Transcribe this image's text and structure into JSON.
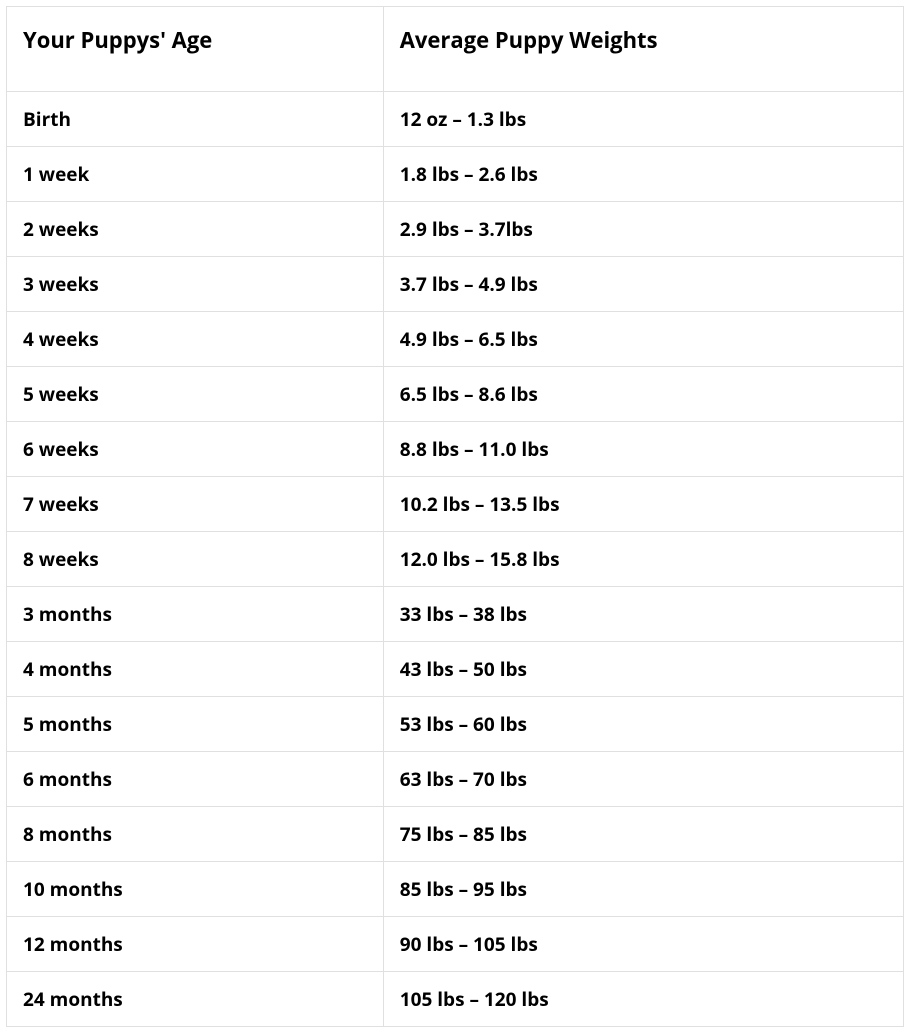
{
  "table": {
    "columns": [
      "Your Puppys' Age",
      "Average Puppy Weights"
    ],
    "rows": [
      [
        "Birth",
        "12 oz – 1.3 lbs"
      ],
      [
        "1 week",
        "1.8 lbs – 2.6 lbs"
      ],
      [
        "2 weeks",
        "2.9 lbs – 3.7lbs"
      ],
      [
        "3 weeks",
        "3.7 lbs – 4.9 lbs"
      ],
      [
        "4 weeks",
        "4.9 lbs – 6.5 lbs"
      ],
      [
        "5 weeks",
        "6.5 lbs – 8.6 lbs"
      ],
      [
        "6 weeks",
        "8.8 lbs – 11.0 lbs"
      ],
      [
        "7 weeks",
        "10.2 lbs – 13.5 lbs"
      ],
      [
        "8 weeks",
        "12.0 lbs – 15.8 lbs"
      ],
      [
        "3 months",
        "33 lbs – 38 lbs"
      ],
      [
        "4 months",
        "43 lbs – 50 lbs"
      ],
      [
        "5 months",
        "53 lbs – 60 lbs"
      ],
      [
        "6 months",
        "63 lbs – 70 lbs"
      ],
      [
        "8 months",
        "75 lbs – 85 lbs"
      ],
      [
        "10 months",
        "85 lbs – 95 lbs"
      ],
      [
        "12 months",
        "90 lbs – 105 lbs"
      ],
      [
        "24 months",
        "105 lbs – 120 lbs"
      ]
    ],
    "header_fontsize": 22,
    "cell_fontsize": 19,
    "font_weight": 700,
    "text_color": "#000000",
    "border_color": "#e0e0e0",
    "background_color": "#ffffff",
    "column_widths": [
      "42%",
      "58%"
    ]
  }
}
